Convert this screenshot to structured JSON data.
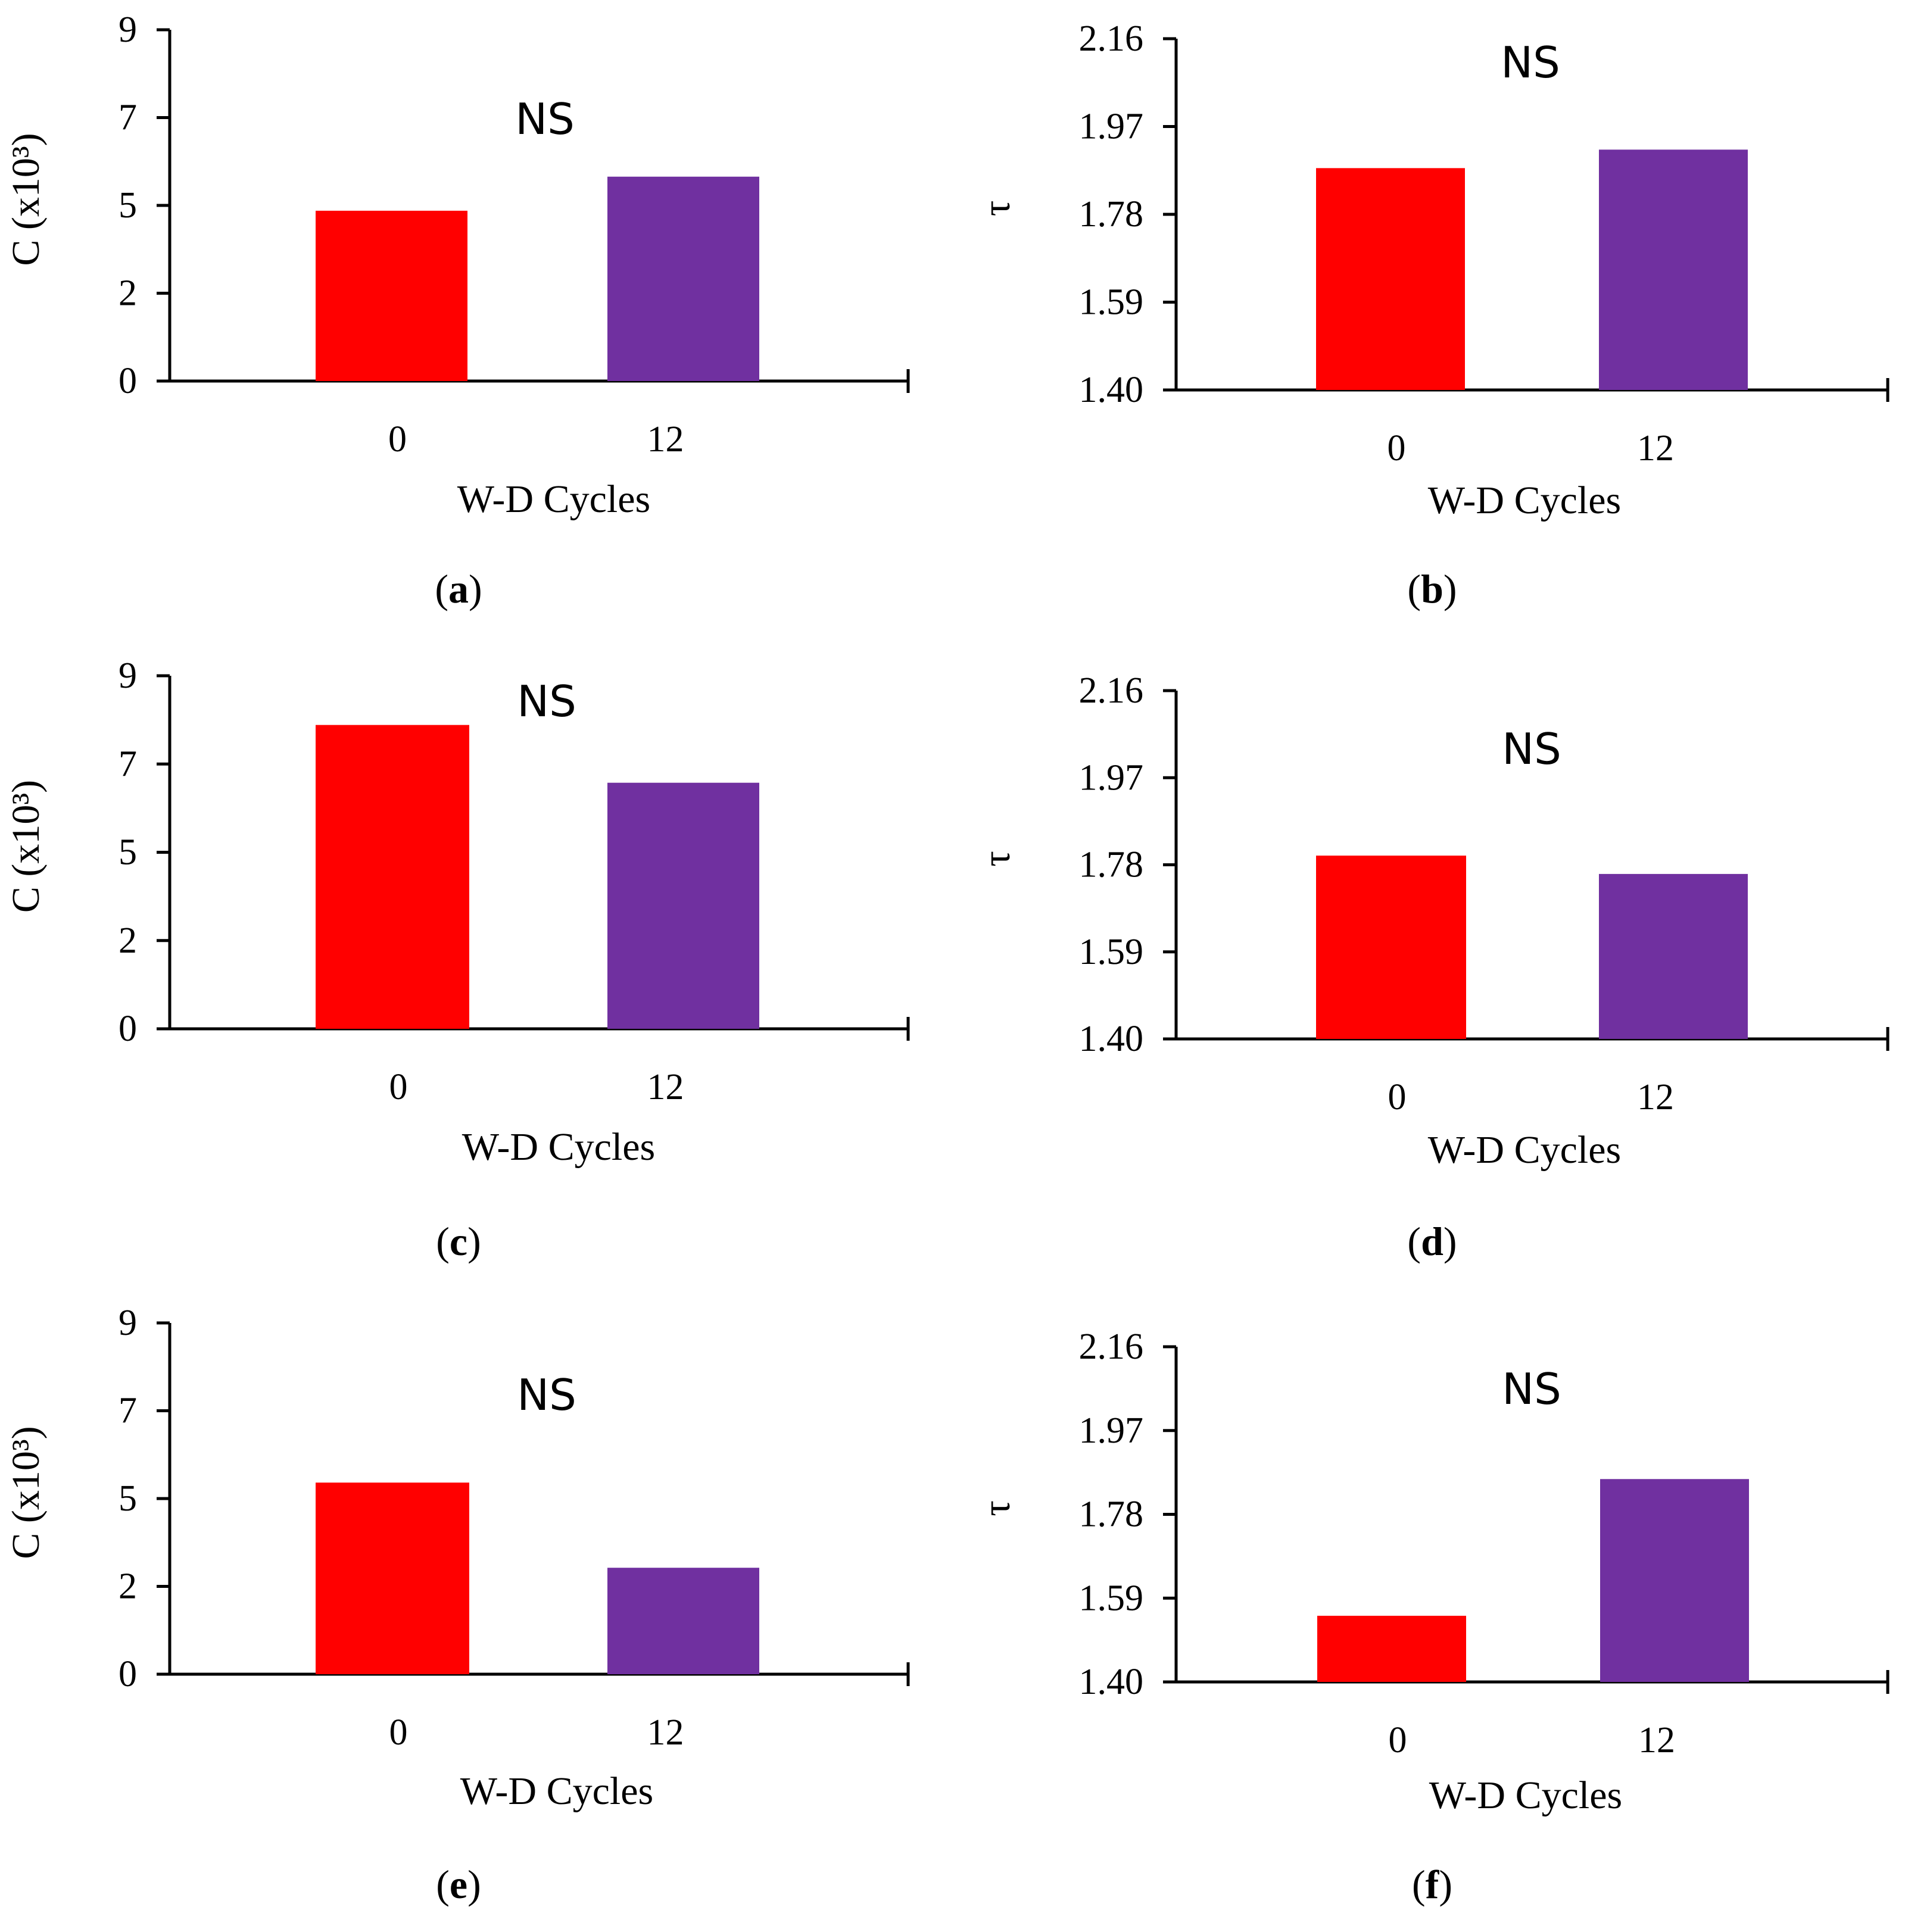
{
  "chart_data": [
    {
      "panel": "a",
      "type": "bar",
      "categories": [
        "0",
        "12"
      ],
      "values": [
        4.0,
        4.8
      ],
      "colors": [
        "#ff0000",
        "#7030a0"
      ],
      "xlabel": "W-D Cycles",
      "ylabel": "C (x10³)",
      "ylim": [
        0,
        8.25
      ],
      "yticks": [
        "0",
        "2",
        "5",
        "7",
        "9"
      ],
      "annotation": "NS"
    },
    {
      "panel": "b",
      "type": "bar",
      "categories": [
        "0",
        "12"
      ],
      "values": [
        1.88,
        1.92
      ],
      "colors": [
        "#ff0000",
        "#7030a0"
      ],
      "xlabel": "W-D Cycles",
      "ylabel": "τ",
      "ylim": [
        1.4,
        2.16
      ],
      "yticks": [
        "1.40",
        "1.59",
        "1.78",
        "1.97",
        "2.16"
      ],
      "annotation": "NS"
    },
    {
      "panel": "c",
      "type": "bar",
      "categories": [
        "0",
        "12"
      ],
      "values": [
        7.1,
        5.75
      ],
      "colors": [
        "#ff0000",
        "#7030a0"
      ],
      "xlabel": "W-D Cycles",
      "ylabel": "C (x10³)",
      "ylim": [
        0,
        8.25
      ],
      "yticks": [
        "0",
        "2",
        "5",
        "7",
        "9"
      ],
      "annotation": "NS"
    },
    {
      "panel": "d",
      "type": "bar",
      "categories": [
        "0",
        "12"
      ],
      "values": [
        1.8,
        1.76
      ],
      "colors": [
        "#ff0000",
        "#7030a0"
      ],
      "xlabel": "W-D Cycles",
      "ylabel": "τ",
      "ylim": [
        1.4,
        2.16
      ],
      "yticks": [
        "1.40",
        "1.59",
        "1.78",
        "1.97",
        "2.16"
      ],
      "annotation": "NS"
    },
    {
      "panel": "e",
      "type": "bar",
      "categories": [
        "0",
        "12"
      ],
      "values": [
        4.5,
        2.5
      ],
      "colors": [
        "#ff0000",
        "#7030a0"
      ],
      "xlabel": "W-D Cycles",
      "ylabel": "C (x10³)",
      "ylim": [
        0,
        8.25
      ],
      "yticks": [
        "0",
        "2",
        "5",
        "7",
        "9"
      ],
      "annotation": "NS"
    },
    {
      "panel": "f",
      "type": "bar",
      "categories": [
        "0",
        "12"
      ],
      "values": [
        1.55,
        1.86
      ],
      "colors": [
        "#ff0000",
        "#7030a0"
      ],
      "xlabel": "W-D Cycles",
      "ylabel": "τ",
      "ylim": [
        1.4,
        2.16
      ],
      "yticks": [
        "1.40",
        "1.59",
        "1.78",
        "1.97",
        "2.16"
      ],
      "annotation": "NS"
    }
  ],
  "panel_labels": [
    {
      "open": "(",
      "letter": "a",
      "close": ")"
    },
    {
      "open": "(",
      "letter": "b",
      "close": ")"
    },
    {
      "open": "(",
      "letter": "c",
      "close": ")"
    },
    {
      "open": "(",
      "letter": "d",
      "close": ")"
    },
    {
      "open": "(",
      "letter": "e",
      "close": ")"
    },
    {
      "open": "(",
      "letter": "f",
      "close": ")"
    }
  ]
}
